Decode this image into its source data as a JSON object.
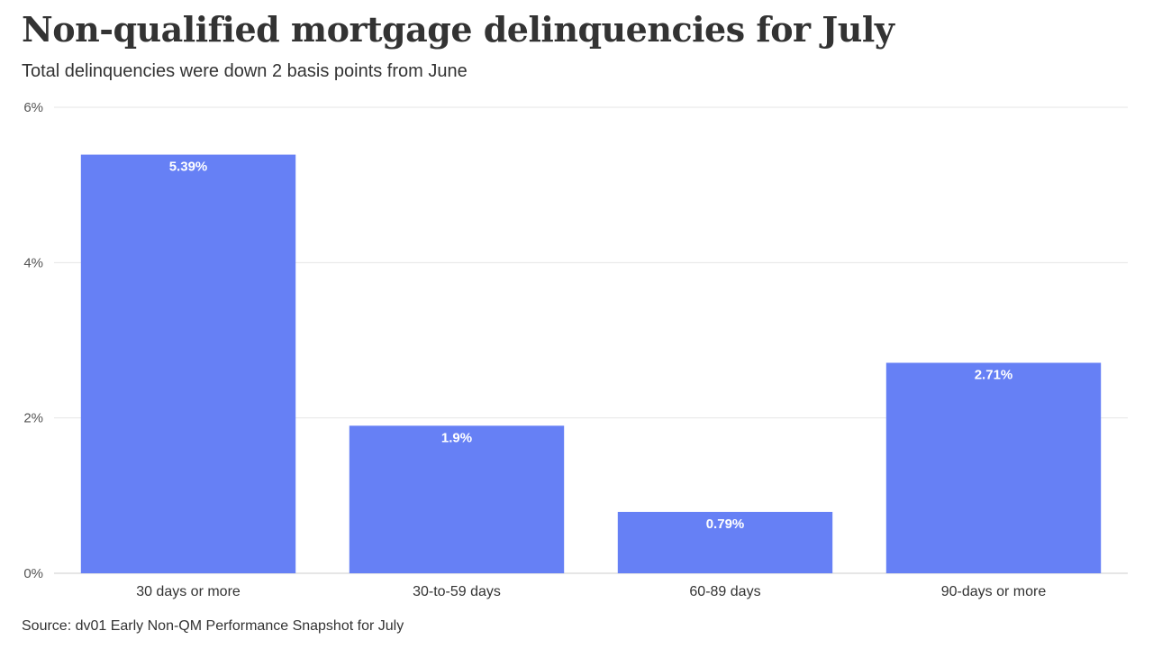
{
  "title": "Non-qualified mortgage delinquencies for July",
  "subtitle": "Total delinquencies were down 2 basis points from June",
  "source": "Source: dv01 Early Non-QM Performance Snapshot for July",
  "chart_data": {
    "type": "bar",
    "categories": [
      "30 days or more",
      "30-to-59 days",
      "60-89 days",
      "90-days or more"
    ],
    "values": [
      5.39,
      1.9,
      0.79,
      2.71
    ],
    "data_labels": [
      "5.39%",
      "1.9%",
      "0.79%",
      "2.71%"
    ],
    "y_ticks": [
      0,
      2,
      4,
      6
    ],
    "y_tick_labels": [
      "0%",
      "2%",
      "4%",
      "6%"
    ],
    "ylim": [
      0,
      6
    ],
    "grid": true,
    "bar_color": "#6680f5"
  }
}
